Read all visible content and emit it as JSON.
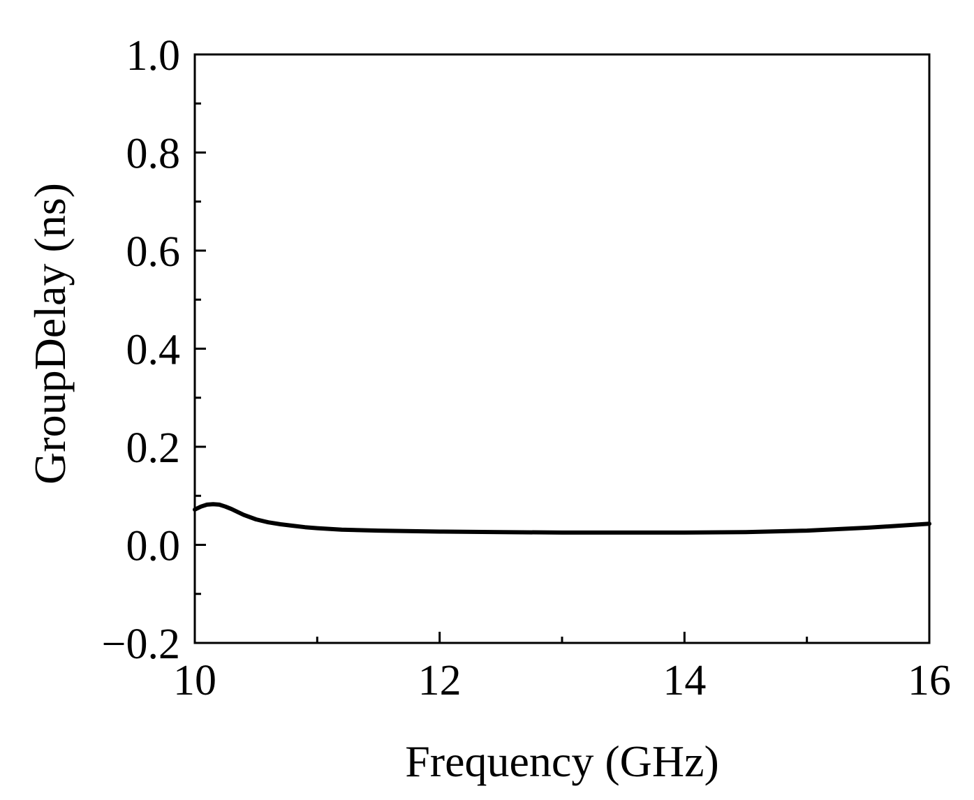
{
  "chart_data": {
    "type": "line",
    "title": "",
    "xlabel": "Frequency (GHz)",
    "ylabel": "GroupDelay (ns)",
    "xlim": [
      10,
      16
    ],
    "ylim": [
      -0.2,
      1.0
    ],
    "x_ticks": [
      10,
      12,
      14,
      16
    ],
    "x_tick_labels": [
      "10",
      "12",
      "14",
      "16"
    ],
    "x_minor_ticks": [
      11,
      13,
      15
    ],
    "y_ticks": [
      -0.2,
      0.0,
      0.2,
      0.4,
      0.6,
      0.8,
      1.0
    ],
    "y_tick_labels": [
      "−0.2",
      "0.0",
      "0.2",
      "0.4",
      "0.6",
      "0.8",
      "1.0"
    ],
    "y_minor_ticks": [
      -0.1,
      0.1,
      0.3,
      0.5,
      0.7,
      0.9
    ],
    "grid": false,
    "legend": "none",
    "line_color": "#000000",
    "series": [
      {
        "x": [
          10.0,
          10.05,
          10.1,
          10.15,
          10.2,
          10.25,
          10.3,
          10.35,
          10.4,
          10.5,
          10.6,
          10.7,
          10.8,
          10.9,
          11.0,
          11.2,
          11.5,
          12.0,
          12.5,
          13.0,
          13.5,
          14.0,
          14.5,
          15.0,
          15.5,
          16.0
        ],
        "y": [
          0.072,
          0.078,
          0.082,
          0.083,
          0.082,
          0.078,
          0.073,
          0.067,
          0.061,
          0.052,
          0.046,
          0.042,
          0.039,
          0.036,
          0.034,
          0.031,
          0.029,
          0.027,
          0.026,
          0.025,
          0.025,
          0.025,
          0.026,
          0.029,
          0.035,
          0.043
        ]
      }
    ]
  }
}
